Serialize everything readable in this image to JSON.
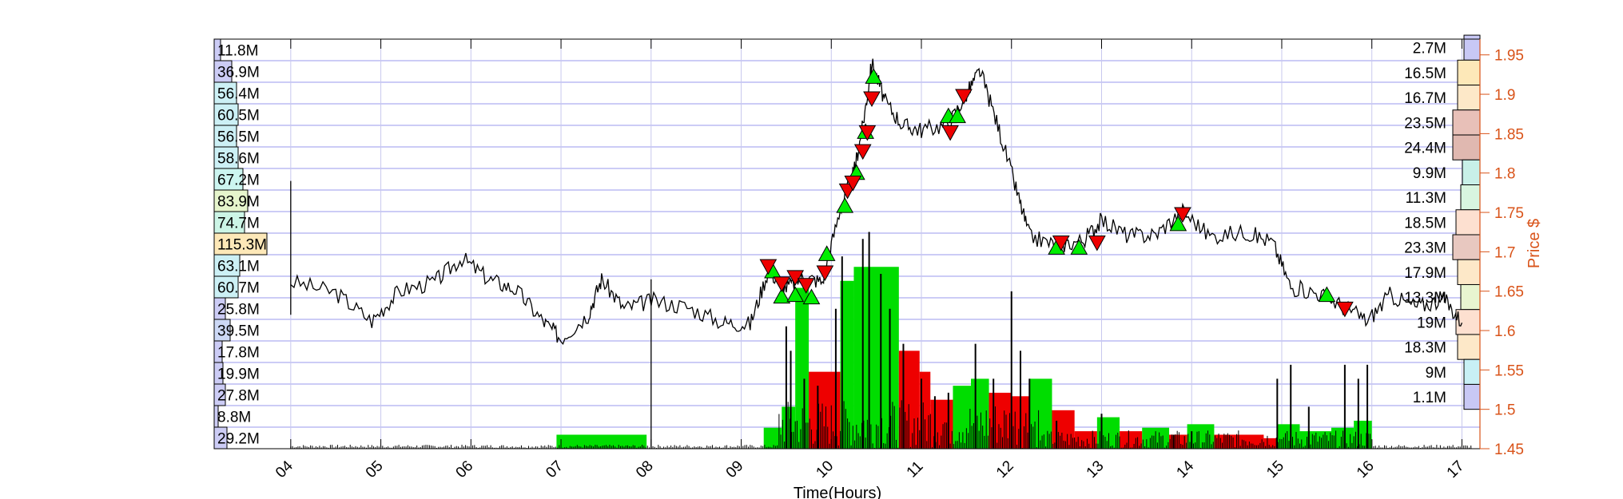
{
  "chart_data": {
    "type": "line",
    "xlabel": "Time(Hours)",
    "ylabel_right": "Price $",
    "x_range": [
      3.15,
      17.2
    ],
    "y_range": [
      1.45,
      1.97
    ],
    "grid": true,
    "colors": {
      "price_axis": "#D95319",
      "grid": "#9999ee",
      "up_volume": "#00dd00",
      "down_volume": "#ee0000",
      "price_line": "#000000"
    },
    "x_ticks": [
      "04",
      "05",
      "06",
      "07",
      "08",
      "09",
      "10",
      "11",
      "12",
      "13",
      "14",
      "15",
      "16",
      "17"
    ],
    "price_ticks": [
      "1.45",
      "1.5",
      "1.55",
      "1.6",
      "1.65",
      "1.7",
      "1.75",
      "1.8",
      "1.85",
      "1.9",
      "1.95"
    ],
    "left_volume_profile": [
      "11.8M",
      "36.9M",
      "56.4M",
      "60.5M",
      "56.5M",
      "58.6M",
      "67.2M",
      "83.9M",
      "74.7M",
      "115.3M",
      "63.1M",
      "60.7M",
      "25.8M",
      "39.5M",
      "17.8M",
      "19.9M",
      "27.8M",
      "8.8M",
      "29.2M"
    ],
    "right_volume_profile": [
      "2.7M",
      "16.5M",
      "16.7M",
      "23.5M",
      "24.4M",
      "9.9M",
      "11.3M",
      "18.5M",
      "23.3M",
      "17.9M",
      "13.3M",
      "19M",
      "18.3M",
      "9M",
      "1.1M"
    ],
    "price_series": [
      [
        4.0,
        1.662
      ],
      [
        4.5,
        1.648
      ],
      [
        4.9,
        1.612
      ],
      [
        5.2,
        1.65
      ],
      [
        5.6,
        1.662
      ],
      [
        5.9,
        1.692
      ],
      [
        6.2,
        1.665
      ],
      [
        6.5,
        1.652
      ],
      [
        6.8,
        1.612
      ],
      [
        7.0,
        1.59
      ],
      [
        7.3,
        1.62
      ],
      [
        7.45,
        1.665
      ],
      [
        7.7,
        1.628
      ],
      [
        8.0,
        1.638
      ],
      [
        8.4,
        1.63
      ],
      [
        8.8,
        1.61
      ],
      [
        9.1,
        1.608
      ],
      [
        9.3,
        1.676
      ],
      [
        9.5,
        1.655
      ],
      [
        9.7,
        1.668
      ],
      [
        9.9,
        1.662
      ],
      [
        10.1,
        1.755
      ],
      [
        10.25,
        1.8
      ],
      [
        10.35,
        1.86
      ],
      [
        10.45,
        1.94
      ],
      [
        10.6,
        1.89
      ],
      [
        10.8,
        1.86
      ],
      [
        11.0,
        1.855
      ],
      [
        11.3,
        1.862
      ],
      [
        11.5,
        1.9
      ],
      [
        11.65,
        1.93
      ],
      [
        11.85,
        1.86
      ],
      [
        12.05,
        1.78
      ],
      [
        12.2,
        1.72
      ],
      [
        12.5,
        1.708
      ],
      [
        12.8,
        1.715
      ],
      [
        13.0,
        1.74
      ],
      [
        13.3,
        1.72
      ],
      [
        13.6,
        1.722
      ],
      [
        13.9,
        1.752
      ],
      [
        14.2,
        1.72
      ],
      [
        14.6,
        1.725
      ],
      [
        14.9,
        1.712
      ],
      [
        15.1,
        1.655
      ],
      [
        15.4,
        1.648
      ],
      [
        15.7,
        1.63
      ],
      [
        15.95,
        1.612
      ],
      [
        16.2,
        1.645
      ],
      [
        16.5,
        1.63
      ],
      [
        16.8,
        1.64
      ],
      [
        17.0,
        1.61
      ]
    ],
    "buy_markers": [
      [
        9.35,
        1.675
      ],
      [
        9.45,
        1.643
      ],
      [
        9.6,
        1.645
      ],
      [
        9.78,
        1.642
      ],
      [
        9.95,
        1.697
      ],
      [
        10.15,
        1.758
      ],
      [
        10.28,
        1.8
      ],
      [
        10.38,
        1.852
      ],
      [
        10.47,
        1.922
      ],
      [
        11.3,
        1.872
      ],
      [
        11.4,
        1.872
      ],
      [
        12.5,
        1.705
      ],
      [
        12.75,
        1.705
      ],
      [
        13.85,
        1.735
      ],
      [
        15.5,
        1.645
      ]
    ],
    "sell_markers": [
      [
        9.3,
        1.682
      ],
      [
        9.45,
        1.66
      ],
      [
        9.6,
        1.668
      ],
      [
        9.72,
        1.658
      ],
      [
        9.93,
        1.674
      ],
      [
        10.18,
        1.778
      ],
      [
        10.24,
        1.788
      ],
      [
        10.35,
        1.828
      ],
      [
        10.4,
        1.852
      ],
      [
        10.45,
        1.895
      ],
      [
        11.32,
        1.852
      ],
      [
        11.47,
        1.898
      ],
      [
        12.55,
        1.712
      ],
      [
        12.95,
        1.712
      ],
      [
        13.9,
        1.748
      ],
      [
        15.7,
        1.628
      ]
    ],
    "volume_blocks": [
      {
        "x0": 6.95,
        "x1": 7.95,
        "h": 0.04,
        "dir": "up"
      },
      {
        "x0": 9.25,
        "x1": 9.45,
        "h": 0.06,
        "dir": "up"
      },
      {
        "x0": 9.45,
        "x1": 9.6,
        "h": 0.12,
        "dir": "up"
      },
      {
        "x0": 9.6,
        "x1": 9.75,
        "h": 0.46,
        "dir": "up"
      },
      {
        "x0": 9.75,
        "x1": 10.1,
        "h": 0.22,
        "dir": "down"
      },
      {
        "x0": 10.1,
        "x1": 10.25,
        "h": 0.48,
        "dir": "up"
      },
      {
        "x0": 10.25,
        "x1": 10.75,
        "h": 0.52,
        "dir": "up"
      },
      {
        "x0": 10.75,
        "x1": 10.98,
        "h": 0.28,
        "dir": "down"
      },
      {
        "x0": 10.98,
        "x1": 11.1,
        "h": 0.22,
        "dir": "down"
      },
      {
        "x0": 11.1,
        "x1": 11.35,
        "h": 0.14,
        "dir": "down"
      },
      {
        "x0": 11.35,
        "x1": 11.55,
        "h": 0.18,
        "dir": "up"
      },
      {
        "x0": 11.55,
        "x1": 11.75,
        "h": 0.2,
        "dir": "up"
      },
      {
        "x0": 11.75,
        "x1": 12.0,
        "h": 0.16,
        "dir": "down"
      },
      {
        "x0": 12.0,
        "x1": 12.2,
        "h": 0.15,
        "dir": "down"
      },
      {
        "x0": 12.2,
        "x1": 12.45,
        "h": 0.2,
        "dir": "up"
      },
      {
        "x0": 12.45,
        "x1": 12.7,
        "h": 0.11,
        "dir": "down"
      },
      {
        "x0": 12.7,
        "x1": 12.95,
        "h": 0.05,
        "dir": "down"
      },
      {
        "x0": 12.95,
        "x1": 13.2,
        "h": 0.09,
        "dir": "up"
      },
      {
        "x0": 13.2,
        "x1": 13.45,
        "h": 0.05,
        "dir": "down"
      },
      {
        "x0": 13.45,
        "x1": 13.75,
        "h": 0.06,
        "dir": "up"
      },
      {
        "x0": 13.75,
        "x1": 13.95,
        "h": 0.04,
        "dir": "down"
      },
      {
        "x0": 13.95,
        "x1": 14.25,
        "h": 0.07,
        "dir": "up"
      },
      {
        "x0": 14.25,
        "x1": 14.8,
        "h": 0.04,
        "dir": "down"
      },
      {
        "x0": 14.8,
        "x1": 14.95,
        "h": 0.03,
        "dir": "down"
      },
      {
        "x0": 14.95,
        "x1": 15.2,
        "h": 0.07,
        "dir": "up"
      },
      {
        "x0": 15.2,
        "x1": 15.55,
        "h": 0.05,
        "dir": "up"
      },
      {
        "x0": 15.55,
        "x1": 15.8,
        "h": 0.06,
        "dir": "up"
      },
      {
        "x0": 15.8,
        "x1": 16.0,
        "h": 0.08,
        "dir": "up"
      }
    ],
    "volume_spikes": [
      [
        9.5,
        0.35
      ],
      [
        9.55,
        0.28
      ],
      [
        9.7,
        0.2
      ],
      [
        9.85,
        0.18
      ],
      [
        10.05,
        0.4
      ],
      [
        10.12,
        0.55
      ],
      [
        10.35,
        0.6
      ],
      [
        10.42,
        0.62
      ],
      [
        10.55,
        0.5
      ],
      [
        10.65,
        0.4
      ],
      [
        10.8,
        0.3
      ],
      [
        11.0,
        0.2
      ],
      [
        11.15,
        0.15
      ],
      [
        11.3,
        0.16
      ],
      [
        11.6,
        0.3
      ],
      [
        11.8,
        0.2
      ],
      [
        12.0,
        0.45
      ],
      [
        12.1,
        0.28
      ],
      [
        12.2,
        0.2
      ],
      [
        12.5,
        0.08
      ],
      [
        13.0,
        0.1
      ],
      [
        13.8,
        0.04
      ],
      [
        14.0,
        0.05
      ],
      [
        14.95,
        0.2
      ],
      [
        15.1,
        0.24
      ],
      [
        15.3,
        0.12
      ],
      [
        15.7,
        0.24
      ],
      [
        15.85,
        0.2
      ],
      [
        15.95,
        0.24
      ]
    ]
  }
}
